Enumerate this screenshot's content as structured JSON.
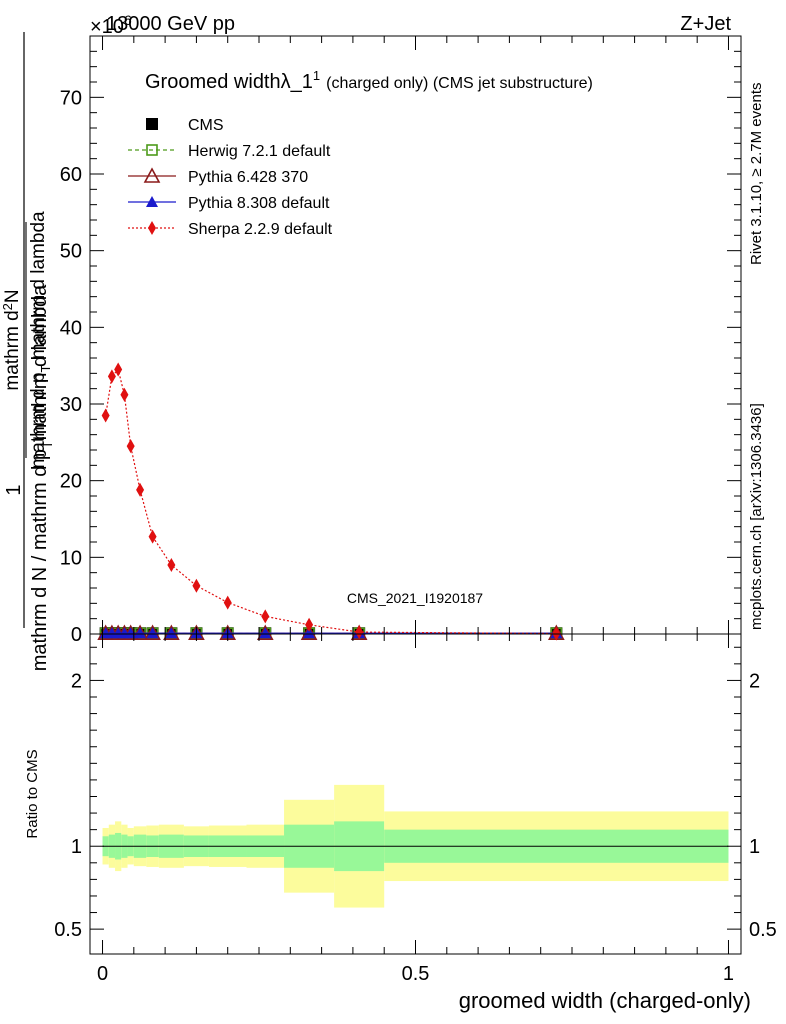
{
  "header": {
    "energy": "13000 GeV pp",
    "process": "Z+Jet",
    "exponent": "×10",
    "exponent_power": "6"
  },
  "side_labels": {
    "rivet": "Rivet 3.1.10, ≥ 2.7M events",
    "mcplots": "mcplots.cern.ch [arXiv:1306.3436]"
  },
  "chart_data": [
    {
      "type": "line",
      "title": "Groomed width",
      "title_symbol": "λ_1",
      "title_sup": "1",
      "title_rest": "(charged only) (CMS jet substructure)",
      "watermark": "CMS_2021_I1920187",
      "ylabel_numerator": "1",
      "ylabel_denominator": "mathrm d N / mathrm d p_T mathrm d lambda",
      "ylabel_parts": {
        "top": "mathrm d",
        "top_sup": "2",
        "top_n": "N",
        "bottom": "mathrm d p",
        "bottom_sub": "T",
        "bottom_rest": "mathrm d lambda"
      },
      "ylim": [
        0,
        78
      ],
      "yticks": [
        0,
        10,
        20,
        30,
        40,
        50,
        60,
        70
      ],
      "xlim": [
        -0.02,
        1.02
      ],
      "legend_position": "top-left",
      "legend": [
        {
          "label": "CMS",
          "color": "#000000",
          "marker": "square-filled"
        },
        {
          "label": "Herwig 7.2.1 default",
          "color": "#4d9a1a",
          "marker": "square-open",
          "dash": "dashed"
        },
        {
          "label": "Pythia 6.428 370",
          "color": "#8b1a1a",
          "marker": "triangle-open",
          "dash": "solid"
        },
        {
          "label": "Pythia 8.308 default",
          "color": "#1a1acc",
          "marker": "triangle-filled",
          "dash": "solid"
        },
        {
          "label": "Sherpa 2.2.9 default",
          "color": "#e01010",
          "marker": "diamond-filled",
          "dash": "dotted"
        }
      ],
      "bins": [
        [
          0.0,
          0.01
        ],
        [
          0.01,
          0.02
        ],
        [
          0.02,
          0.03
        ],
        [
          0.03,
          0.04
        ],
        [
          0.04,
          0.05
        ],
        [
          0.05,
          0.07
        ],
        [
          0.07,
          0.09
        ],
        [
          0.09,
          0.13
        ],
        [
          0.13,
          0.17
        ],
        [
          0.17,
          0.23
        ],
        [
          0.23,
          0.29
        ],
        [
          0.29,
          0.37
        ],
        [
          0.37,
          0.45
        ],
        [
          0.45,
          1.0
        ]
      ],
      "series": [
        {
          "name": "CMS",
          "x": [
            0.005,
            0.015,
            0.025,
            0.035,
            0.045,
            0.06,
            0.08,
            0.11,
            0.15,
            0.2,
            0.26,
            0.33,
            0.41,
            0.725
          ],
          "y": [
            0.1,
            0.1,
            0.1,
            0.1,
            0.1,
            0.1,
            0.1,
            0.1,
            0.1,
            0.1,
            0.1,
            0.1,
            0.1,
            0.1
          ]
        },
        {
          "name": "Herwig 7.2.1 default",
          "x": [
            0.005,
            0.015,
            0.025,
            0.035,
            0.045,
            0.06,
            0.08,
            0.11,
            0.15,
            0.2,
            0.26,
            0.33,
            0.41,
            0.725
          ],
          "y": [
            0.1,
            0.1,
            0.1,
            0.1,
            0.1,
            0.1,
            0.1,
            0.1,
            0.1,
            0.1,
            0.1,
            0.1,
            0.1,
            0.1
          ]
        },
        {
          "name": "Pythia 6.428 370",
          "x": [
            0.005,
            0.015,
            0.025,
            0.035,
            0.045,
            0.06,
            0.08,
            0.11,
            0.15,
            0.2,
            0.26,
            0.33,
            0.41,
            0.725
          ],
          "y": [
            0.1,
            0.1,
            0.1,
            0.1,
            0.1,
            0.1,
            0.1,
            0.1,
            0.1,
            0.1,
            0.1,
            0.1,
            0.1,
            0.1
          ]
        },
        {
          "name": "Pythia 8.308 default",
          "x": [
            0.005,
            0.015,
            0.025,
            0.035,
            0.045,
            0.06,
            0.08,
            0.11,
            0.15,
            0.2,
            0.26,
            0.33,
            0.41,
            0.725
          ],
          "y": [
            0.1,
            0.1,
            0.1,
            0.1,
            0.1,
            0.1,
            0.1,
            0.1,
            0.1,
            0.1,
            0.1,
            0.1,
            0.1,
            0.1
          ]
        },
        {
          "name": "Sherpa 2.2.9 default",
          "x": [
            0.005,
            0.015,
            0.025,
            0.035,
            0.045,
            0.06,
            0.08,
            0.11,
            0.15,
            0.2,
            0.26,
            0.33,
            0.41,
            0.725
          ],
          "y": [
            28.5,
            33.6,
            34.5,
            31.2,
            24.5,
            18.8,
            12.7,
            9.0,
            6.3,
            4.1,
            2.3,
            1.2,
            0.25,
            0.05
          ]
        }
      ]
    },
    {
      "type": "area",
      "ylabel": "Ratio to CMS",
      "xlabel": "groomed width (charged-only)",
      "ylim": [
        0.35,
        2.28
      ],
      "yticks": [
        0.5,
        1,
        2
      ],
      "yticklabels": [
        "0.5",
        "1",
        "2"
      ],
      "xlim": [
        -0.02,
        1.02
      ],
      "xticks": [
        0,
        0.5,
        1
      ],
      "xticklabels": [
        "0",
        "0.5",
        "1"
      ],
      "reference": 1,
      "band_colors": {
        "inner": "#98f898",
        "outer": "#fcfc9c"
      },
      "bands": [
        {
          "x0": 0.0,
          "x1": 0.01,
          "inner": [
            0.94,
            1.06
          ],
          "outer": [
            0.89,
            1.11
          ]
        },
        {
          "x0": 0.01,
          "x1": 0.02,
          "inner": [
            0.93,
            1.07
          ],
          "outer": [
            0.87,
            1.13
          ]
        },
        {
          "x0": 0.02,
          "x1": 0.03,
          "inner": [
            0.92,
            1.08
          ],
          "outer": [
            0.85,
            1.15
          ]
        },
        {
          "x0": 0.03,
          "x1": 0.04,
          "inner": [
            0.93,
            1.07
          ],
          "outer": [
            0.87,
            1.13
          ]
        },
        {
          "x0": 0.04,
          "x1": 0.05,
          "inner": [
            0.94,
            1.06
          ],
          "outer": [
            0.89,
            1.11
          ]
        },
        {
          "x0": 0.05,
          "x1": 0.07,
          "inner": [
            0.93,
            1.07
          ],
          "outer": [
            0.88,
            1.12
          ]
        },
        {
          "x0": 0.07,
          "x1": 0.09,
          "inner": [
            0.935,
            1.065
          ],
          "outer": [
            0.875,
            1.125
          ]
        },
        {
          "x0": 0.09,
          "x1": 0.13,
          "inner": [
            0.93,
            1.07
          ],
          "outer": [
            0.87,
            1.13
          ]
        },
        {
          "x0": 0.13,
          "x1": 0.17,
          "inner": [
            0.935,
            1.065
          ],
          "outer": [
            0.88,
            1.12
          ]
        },
        {
          "x0": 0.17,
          "x1": 0.23,
          "inner": [
            0.935,
            1.065
          ],
          "outer": [
            0.875,
            1.125
          ]
        },
        {
          "x0": 0.23,
          "x1": 0.29,
          "inner": [
            0.935,
            1.065
          ],
          "outer": [
            0.87,
            1.13
          ]
        },
        {
          "x0": 0.29,
          "x1": 0.37,
          "inner": [
            0.87,
            1.13
          ],
          "outer": [
            0.72,
            1.28
          ]
        },
        {
          "x0": 0.37,
          "x1": 0.45,
          "inner": [
            0.85,
            1.15
          ],
          "outer": [
            0.63,
            1.37
          ]
        },
        {
          "x0": 0.45,
          "x1": 1.0,
          "inner": [
            0.9,
            1.1
          ],
          "outer": [
            0.79,
            1.21
          ]
        }
      ]
    }
  ]
}
